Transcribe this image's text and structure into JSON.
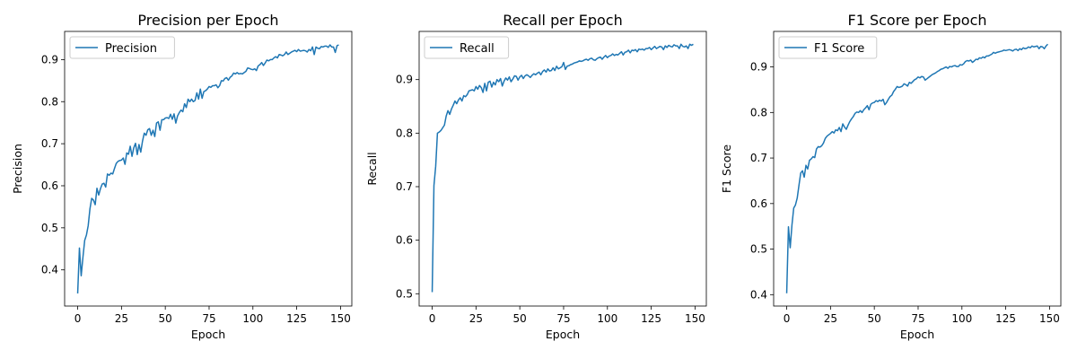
{
  "chart_data": [
    {
      "type": "line",
      "title": "Precision per Epoch",
      "xlabel": "Epoch",
      "ylabel": "Precision",
      "xlim": [
        -7.45,
        156.45
      ],
      "ylim": [
        0.314,
        0.967
      ],
      "xticks": [
        0,
        25,
        50,
        75,
        100,
        125,
        150
      ],
      "yticks": [
        0.4,
        0.5,
        0.6,
        0.7,
        0.8,
        0.9
      ],
      "grid": false,
      "legend": "top-left",
      "color": "#1f77b4",
      "series": [
        {
          "name": "Precision",
          "x": [
            0,
            1,
            2,
            3,
            4,
            5,
            6,
            7,
            8,
            9,
            10,
            11,
            12,
            13,
            14,
            15,
            16,
            17,
            18,
            19,
            20,
            21,
            22,
            23,
            24,
            25,
            26,
            27,
            28,
            29,
            30,
            31,
            32,
            33,
            34,
            35,
            36,
            37,
            38,
            39,
            40,
            41,
            42,
            43,
            44,
            45,
            46,
            47,
            48,
            49,
            50,
            51,
            52,
            53,
            54,
            55,
            56,
            57,
            58,
            59,
            60,
            61,
            62,
            63,
            64,
            65,
            66,
            67,
            68,
            69,
            70,
            71,
            72,
            73,
            74,
            75,
            76,
            77,
            78,
            79,
            80,
            81,
            82,
            83,
            84,
            85,
            86,
            87,
            88,
            89,
            90,
            91,
            92,
            93,
            94,
            95,
            96,
            97,
            98,
            99,
            100,
            101,
            102,
            103,
            104,
            105,
            106,
            107,
            108,
            109,
            110,
            111,
            112,
            113,
            114,
            115,
            116,
            117,
            118,
            119,
            120,
            121,
            122,
            123,
            124,
            125,
            126,
            127,
            128,
            129,
            130,
            131,
            132,
            133,
            134,
            135,
            136,
            137,
            138,
            139,
            140,
            141,
            142,
            143,
            144,
            145,
            146,
            147,
            148,
            149
          ],
          "y": [
            0.344,
            0.452,
            0.386,
            0.43,
            0.47,
            0.483,
            0.505,
            0.545,
            0.57,
            0.566,
            0.555,
            0.594,
            0.578,
            0.593,
            0.604,
            0.606,
            0.597,
            0.628,
            0.625,
            0.63,
            0.628,
            0.641,
            0.653,
            0.658,
            0.66,
            0.661,
            0.666,
            0.651,
            0.678,
            0.675,
            0.694,
            0.67,
            0.69,
            0.701,
            0.674,
            0.698,
            0.68,
            0.706,
            0.725,
            0.72,
            0.733,
            0.736,
            0.72,
            0.732,
            0.717,
            0.749,
            0.752,
            0.732,
            0.757,
            0.757,
            0.761,
            0.762,
            0.76,
            0.77,
            0.758,
            0.771,
            0.749,
            0.766,
            0.774,
            0.78,
            0.776,
            0.795,
            0.786,
            0.806,
            0.8,
            0.806,
            0.8,
            0.803,
            0.821,
            0.806,
            0.83,
            0.808,
            0.824,
            0.826,
            0.83,
            0.836,
            0.834,
            0.838,
            0.838,
            0.84,
            0.833,
            0.838,
            0.85,
            0.849,
            0.855,
            0.857,
            0.851,
            0.858,
            0.861,
            0.868,
            0.866,
            0.869,
            0.866,
            0.867,
            0.866,
            0.869,
            0.872,
            0.88,
            0.879,
            0.877,
            0.876,
            0.878,
            0.874,
            0.885,
            0.888,
            0.893,
            0.886,
            0.892,
            0.899,
            0.897,
            0.9,
            0.9,
            0.904,
            0.907,
            0.904,
            0.912,
            0.911,
            0.909,
            0.912,
            0.918,
            0.912,
            0.915,
            0.918,
            0.92,
            0.922,
            0.919,
            0.924,
            0.92,
            0.921,
            0.922,
            0.921,
            0.918,
            0.924,
            0.921,
            0.93,
            0.912,
            0.93,
            0.927,
            0.926,
            0.931,
            0.93,
            0.932,
            0.932,
            0.929,
            0.935,
            0.93,
            0.93,
            0.917,
            0.933,
            0.935
          ]
        }
      ]
    },
    {
      "type": "line",
      "title": "Recall per Epoch",
      "xlabel": "Epoch",
      "ylabel": "Recall",
      "xlim": [
        -7.45,
        156.45
      ],
      "ylim": [
        0.477,
        0.99
      ],
      "xticks": [
        0,
        25,
        50,
        75,
        100,
        125,
        150
      ],
      "yticks": [
        0.5,
        0.6,
        0.7,
        0.8,
        0.9
      ],
      "grid": false,
      "legend": "top-left",
      "color": "#1f77b4",
      "series": [
        {
          "name": "Recall",
          "x": [
            0,
            1,
            2,
            3,
            4,
            5,
            6,
            7,
            8,
            9,
            10,
            11,
            12,
            13,
            14,
            15,
            16,
            17,
            18,
            19,
            20,
            21,
            22,
            23,
            24,
            25,
            26,
            27,
            28,
            29,
            30,
            31,
            32,
            33,
            34,
            35,
            36,
            37,
            38,
            39,
            40,
            41,
            42,
            43,
            44,
            45,
            46,
            47,
            48,
            49,
            50,
            51,
            52,
            53,
            54,
            55,
            56,
            57,
            58,
            59,
            60,
            61,
            62,
            63,
            64,
            65,
            66,
            67,
            68,
            69,
            70,
            71,
            72,
            73,
            74,
            75,
            76,
            77,
            78,
            79,
            80,
            81,
            82,
            83,
            84,
            85,
            86,
            87,
            88,
            89,
            90,
            91,
            92,
            93,
            94,
            95,
            96,
            97,
            98,
            99,
            100,
            101,
            102,
            103,
            104,
            105,
            106,
            107,
            108,
            109,
            110,
            111,
            112,
            113,
            114,
            115,
            116,
            117,
            118,
            119,
            120,
            121,
            122,
            123,
            124,
            125,
            126,
            127,
            128,
            129,
            130,
            131,
            132,
            133,
            134,
            135,
            136,
            137,
            138,
            139,
            140,
            141,
            142,
            143,
            144,
            145,
            146,
            147,
            148,
            149
          ],
          "y": [
            0.503,
            0.702,
            0.738,
            0.8,
            0.802,
            0.805,
            0.81,
            0.815,
            0.832,
            0.842,
            0.835,
            0.845,
            0.852,
            0.86,
            0.855,
            0.862,
            0.866,
            0.86,
            0.87,
            0.868,
            0.872,
            0.879,
            0.88,
            0.881,
            0.879,
            0.887,
            0.882,
            0.889,
            0.885,
            0.876,
            0.893,
            0.879,
            0.895,
            0.897,
            0.886,
            0.895,
            0.89,
            0.9,
            0.896,
            0.902,
            0.888,
            0.897,
            0.903,
            0.899,
            0.905,
            0.896,
            0.901,
            0.907,
            0.906,
            0.899,
            0.905,
            0.908,
            0.902,
            0.907,
            0.909,
            0.907,
            0.904,
            0.908,
            0.911,
            0.909,
            0.912,
            0.914,
            0.909,
            0.915,
            0.918,
            0.914,
            0.92,
            0.916,
            0.917,
            0.922,
            0.917,
            0.925,
            0.92,
            0.922,
            0.924,
            0.932,
            0.919,
            0.925,
            0.926,
            0.928,
            0.929,
            0.931,
            0.932,
            0.933,
            0.935,
            0.934,
            0.935,
            0.937,
            0.938,
            0.936,
            0.939,
            0.94,
            0.937,
            0.936,
            0.939,
            0.941,
            0.942,
            0.938,
            0.942,
            0.945,
            0.941,
            0.944,
            0.945,
            0.948,
            0.945,
            0.947,
            0.946,
            0.949,
            0.952,
            0.946,
            0.951,
            0.952,
            0.955,
            0.95,
            0.955,
            0.954,
            0.956,
            0.952,
            0.957,
            0.956,
            0.957,
            0.955,
            0.958,
            0.958,
            0.96,
            0.956,
            0.959,
            0.962,
            0.958,
            0.96,
            0.962,
            0.961,
            0.956,
            0.963,
            0.96,
            0.964,
            0.962,
            0.961,
            0.965,
            0.963,
            0.963,
            0.958,
            0.966,
            0.962,
            0.961,
            0.963,
            0.958,
            0.966,
            0.964,
            0.966
          ]
        }
      ]
    },
    {
      "type": "line",
      "title": "F1 Score per Epoch",
      "xlabel": "Epoch",
      "ylabel": "F1 Score",
      "xlim": [
        -7.45,
        156.45
      ],
      "ylim": [
        0.375,
        0.978
      ],
      "xticks": [
        0,
        25,
        50,
        75,
        100,
        125,
        150
      ],
      "yticks": [
        0.4,
        0.5,
        0.6,
        0.7,
        0.8,
        0.9
      ],
      "grid": false,
      "legend": "top-left",
      "color": "#1f77b4",
      "series": [
        {
          "name": "F1 Score",
          "x": [
            0,
            1,
            2,
            3,
            4,
            5,
            6,
            7,
            8,
            9,
            10,
            11,
            12,
            13,
            14,
            15,
            16,
            17,
            18,
            19,
            20,
            21,
            22,
            23,
            24,
            25,
            26,
            27,
            28,
            29,
            30,
            31,
            32,
            33,
            34,
            35,
            36,
            37,
            38,
            39,
            40,
            41,
            42,
            43,
            44,
            45,
            46,
            47,
            48,
            49,
            50,
            51,
            52,
            53,
            54,
            55,
            56,
            57,
            58,
            59,
            60,
            61,
            62,
            63,
            64,
            65,
            66,
            67,
            68,
            69,
            70,
            71,
            72,
            73,
            74,
            75,
            76,
            77,
            78,
            79,
            80,
            81,
            82,
            83,
            84,
            85,
            86,
            87,
            88,
            89,
            90,
            91,
            92,
            93,
            94,
            95,
            96,
            97,
            98,
            99,
            100,
            101,
            102,
            103,
            104,
            105,
            106,
            107,
            108,
            109,
            110,
            111,
            112,
            113,
            114,
            115,
            116,
            117,
            118,
            119,
            120,
            121,
            122,
            123,
            124,
            125,
            126,
            127,
            128,
            129,
            130,
            131,
            132,
            133,
            134,
            135,
            136,
            137,
            138,
            139,
            140,
            141,
            142,
            143,
            144,
            145,
            146,
            147,
            148,
            149
          ],
          "y": [
            0.403,
            0.549,
            0.503,
            0.553,
            0.59,
            0.597,
            0.612,
            0.64,
            0.667,
            0.672,
            0.658,
            0.684,
            0.676,
            0.695,
            0.698,
            0.703,
            0.701,
            0.72,
            0.725,
            0.724,
            0.727,
            0.733,
            0.743,
            0.748,
            0.751,
            0.754,
            0.758,
            0.755,
            0.762,
            0.76,
            0.767,
            0.758,
            0.775,
            0.768,
            0.763,
            0.772,
            0.78,
            0.786,
            0.791,
            0.798,
            0.801,
            0.8,
            0.804,
            0.8,
            0.806,
            0.81,
            0.815,
            0.806,
            0.818,
            0.821,
            0.822,
            0.826,
            0.824,
            0.827,
            0.825,
            0.829,
            0.817,
            0.822,
            0.829,
            0.835,
            0.838,
            0.846,
            0.851,
            0.857,
            0.855,
            0.856,
            0.858,
            0.863,
            0.861,
            0.858,
            0.866,
            0.864,
            0.868,
            0.872,
            0.874,
            0.878,
            0.876,
            0.879,
            0.878,
            0.871,
            0.874,
            0.877,
            0.88,
            0.883,
            0.885,
            0.887,
            0.89,
            0.892,
            0.895,
            0.896,
            0.898,
            0.9,
            0.897,
            0.901,
            0.9,
            0.902,
            0.903,
            0.901,
            0.901,
            0.905,
            0.904,
            0.907,
            0.912,
            0.914,
            0.913,
            0.915,
            0.91,
            0.913,
            0.917,
            0.916,
            0.92,
            0.919,
            0.922,
            0.92,
            0.924,
            0.924,
            0.926,
            0.928,
            0.932,
            0.93,
            0.932,
            0.933,
            0.934,
            0.935,
            0.937,
            0.936,
            0.937,
            0.938,
            0.937,
            0.935,
            0.938,
            0.939,
            0.936,
            0.94,
            0.938,
            0.942,
            0.94,
            0.941,
            0.944,
            0.942,
            0.946,
            0.944,
            0.945,
            0.946,
            0.94,
            0.945,
            0.944,
            0.94,
            0.946,
            0.95
          ]
        }
      ]
    }
  ]
}
